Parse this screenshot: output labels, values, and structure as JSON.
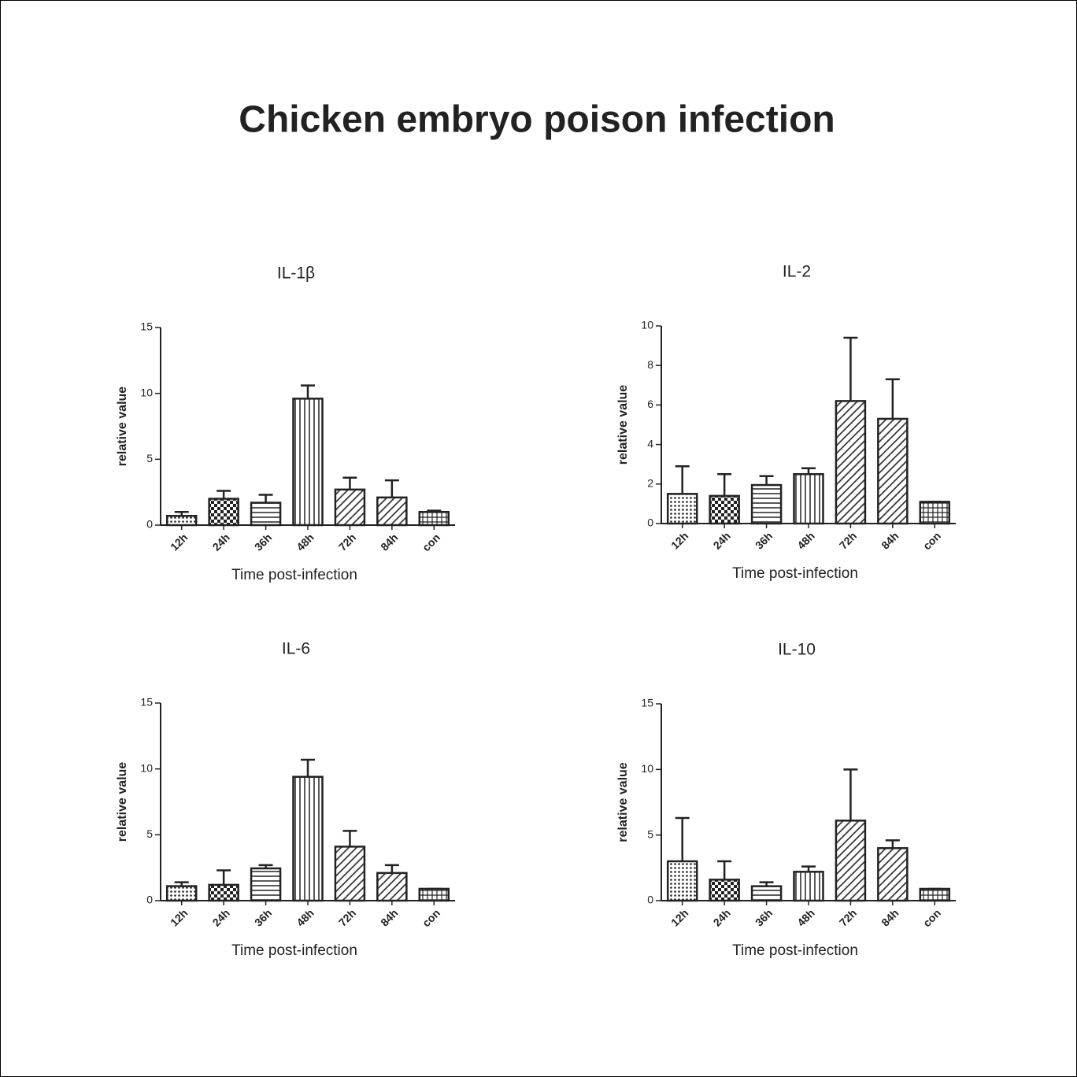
{
  "title": "Chicken embryo poison infection",
  "chart_data": [
    {
      "type": "bar",
      "title": "IL-1β",
      "x_label": "Time post-infection",
      "y_label": "relative value",
      "categories": [
        "12h",
        "24h",
        "36h",
        "48h",
        "72h",
        "84h",
        "con"
      ],
      "values": [
        0.7,
        2.0,
        1.7,
        9.6,
        2.7,
        2.1,
        1.0
      ],
      "errors": [
        0.3,
        0.6,
        0.6,
        1.0,
        0.9,
        1.3,
        0.1
      ],
      "patterns": [
        "dots",
        "checker",
        "hlines",
        "vlines",
        "diag",
        "diag",
        "grid"
      ],
      "ylim": [
        0,
        15
      ],
      "yticks": [
        0,
        5,
        10,
        15
      ]
    },
    {
      "type": "bar",
      "title": "IL-2",
      "x_label": "Time post-infection",
      "y_label": "relative value",
      "categories": [
        "12h",
        "24h",
        "36h",
        "48h",
        "72h",
        "84h",
        "con"
      ],
      "values": [
        1.5,
        1.4,
        1.95,
        2.5,
        6.2,
        5.3,
        1.1
      ],
      "errors": [
        1.4,
        1.1,
        0.45,
        0.3,
        3.2,
        2.0,
        0
      ],
      "patterns": [
        "dots",
        "checker",
        "hlines",
        "vlines",
        "diag",
        "diag",
        "grid"
      ],
      "ylim": [
        0,
        10
      ],
      "yticks": [
        0,
        2,
        4,
        6,
        8,
        10
      ]
    },
    {
      "type": "bar",
      "title": "IL-6",
      "x_label": "Time post-infection",
      "y_label": "relative value",
      "categories": [
        "12h",
        "24h",
        "36h",
        "48h",
        "72h",
        "84h",
        "con"
      ],
      "values": [
        1.1,
        1.2,
        2.45,
        9.4,
        4.1,
        2.1,
        0.9
      ],
      "errors": [
        0.3,
        1.1,
        0.25,
        1.3,
        1.2,
        0.6,
        0
      ],
      "patterns": [
        "dots",
        "checker",
        "hlines",
        "vlines",
        "diag",
        "diag",
        "grid"
      ],
      "ylim": [
        0,
        15
      ],
      "yticks": [
        0,
        5,
        10,
        15
      ]
    },
    {
      "type": "bar",
      "title": "IL-10",
      "x_label": "Time post-infection",
      "y_label": "relative value",
      "categories": [
        "12h",
        "24h",
        "36h",
        "48h",
        "72h",
        "84h",
        "con"
      ],
      "values": [
        3.0,
        1.6,
        1.1,
        2.2,
        6.1,
        4.0,
        0.9
      ],
      "errors": [
        3.3,
        1.4,
        0.3,
        0.4,
        3.9,
        0.6,
        0
      ],
      "patterns": [
        "dots",
        "checker",
        "hlines",
        "vlines",
        "diag",
        "diag",
        "grid"
      ],
      "ylim": [
        0,
        15
      ],
      "yticks": [
        0,
        5,
        10,
        15
      ]
    }
  ]
}
